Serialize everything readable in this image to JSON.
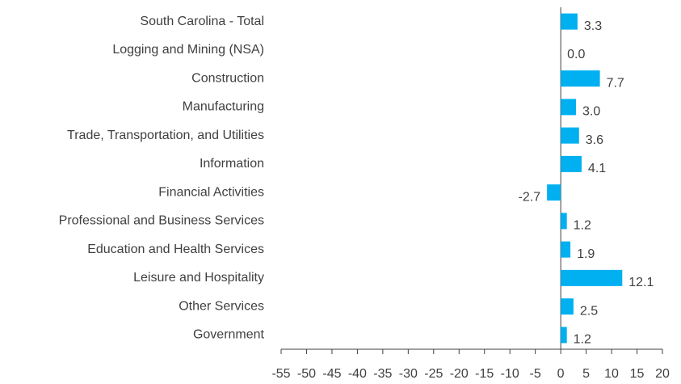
{
  "chart_data": {
    "type": "bar",
    "orientation": "horizontal",
    "categories": [
      "South Carolina - Total",
      "Logging and Mining (NSA)",
      "Construction",
      "Manufacturing",
      "Trade, Transportation, and Utilities",
      "Information",
      "Financial Activities",
      "Professional and Business Services",
      "Education and Health Services",
      "Leisure and Hospitality",
      "Other Services",
      "Government"
    ],
    "values": [
      3.3,
      0.0,
      7.7,
      3.0,
      3.6,
      4.1,
      -2.7,
      1.2,
      1.9,
      12.1,
      2.5,
      1.2
    ],
    "value_labels": [
      "3.3",
      "0.0",
      "7.7",
      "3.0",
      "3.6",
      "4.1",
      "-2.7",
      "1.2",
      "1.9",
      "12.1",
      "2.5",
      "1.2"
    ],
    "color": "#00b0f0",
    "xlim": [
      -55,
      20
    ],
    "xticks": [
      -55,
      -50,
      -45,
      -40,
      -35,
      -30,
      -25,
      -20,
      -15,
      -10,
      -5,
      0,
      5,
      10,
      15,
      20
    ],
    "grid": false
  }
}
